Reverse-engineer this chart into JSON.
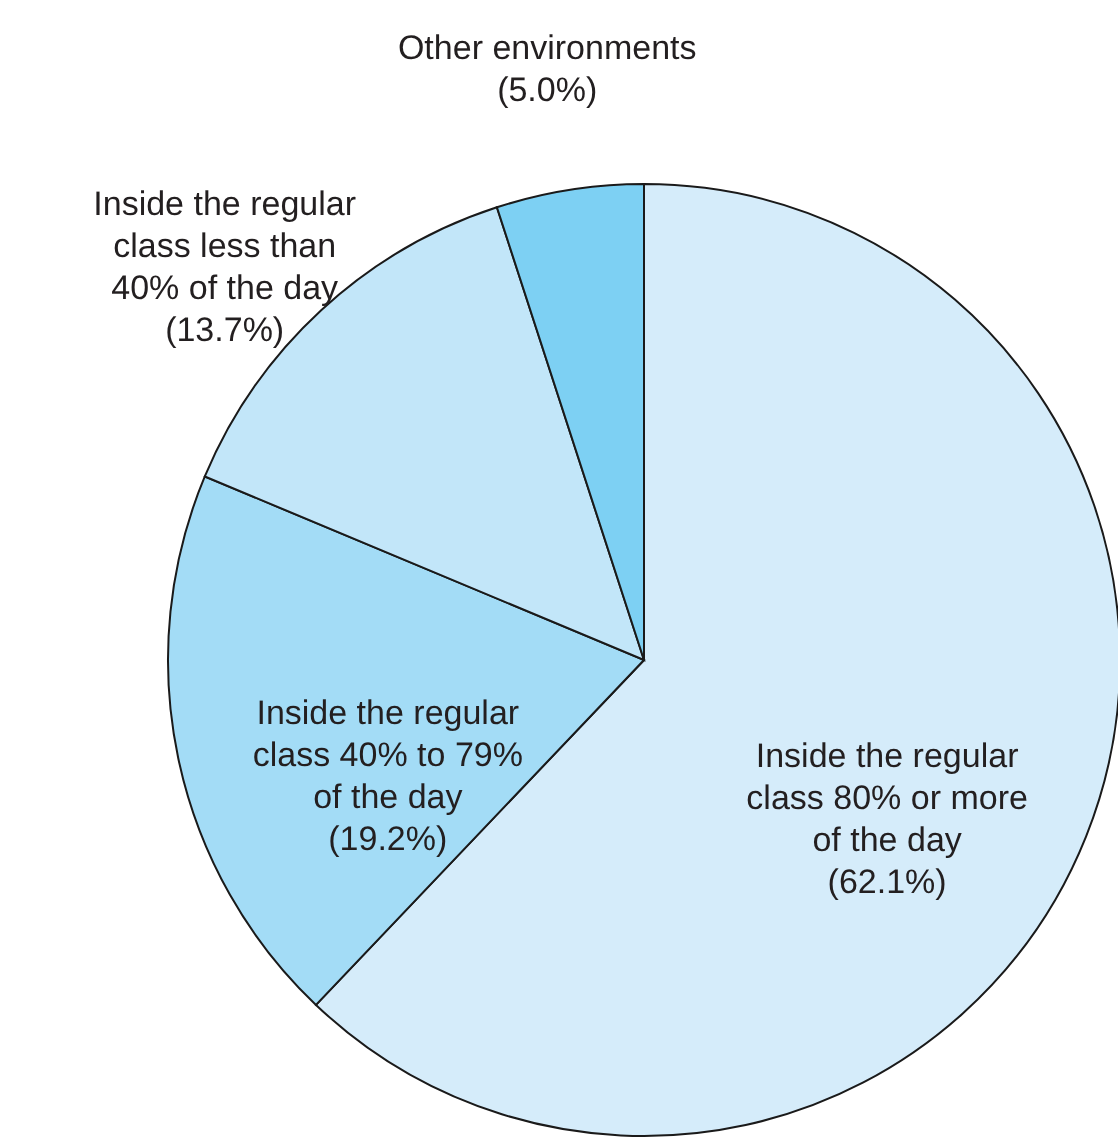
{
  "chart_data": {
    "type": "pie",
    "categories": [
      "Inside the regular class 80% or more of the day",
      "Inside the regular class 40% to 79% of the day",
      "Inside the regular class less than 40% of the day",
      "Other environments"
    ],
    "values": [
      62.1,
      19.2,
      13.7,
      5.0
    ],
    "value_labels": [
      "(62.1%)",
      "(19.2%)",
      "(13.7%)",
      "(5.0%)"
    ],
    "colors": [
      "#d5ecfa",
      "#a3dcf6",
      "#c2e6f9",
      "#7dd0f3"
    ]
  }
}
